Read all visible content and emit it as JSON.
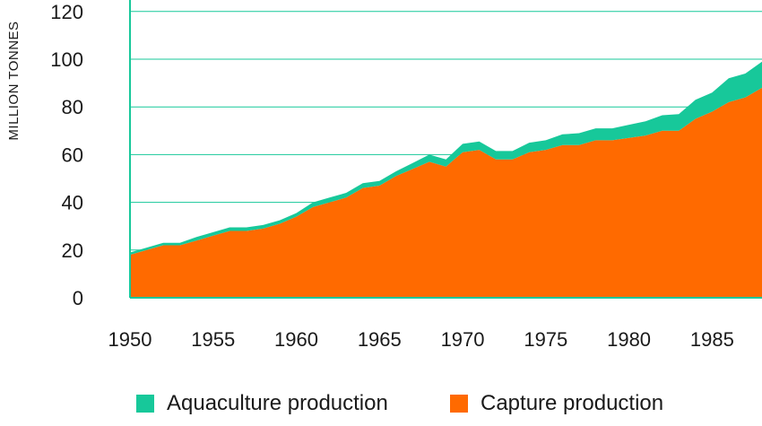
{
  "chart_data": {
    "type": "area",
    "stacked": true,
    "title": "",
    "xlabel": "",
    "ylabel": "MILLION TONNES",
    "ylim": [
      0,
      120
    ],
    "xlim": [
      1950,
      1988
    ],
    "yticks": [
      0,
      20,
      40,
      60,
      80,
      100,
      120
    ],
    "xticks": [
      1950,
      1955,
      1960,
      1965,
      1970,
      1975,
      1980,
      1985
    ],
    "grid": true,
    "legend_position": "bottom",
    "x": [
      1950,
      1951,
      1952,
      1953,
      1954,
      1955,
      1956,
      1957,
      1958,
      1959,
      1960,
      1961,
      1962,
      1963,
      1964,
      1965,
      1966,
      1967,
      1968,
      1969,
      1970,
      1971,
      1972,
      1973,
      1974,
      1975,
      1976,
      1977,
      1978,
      1979,
      1980,
      1981,
      1982,
      1983,
      1984,
      1985,
      1986,
      1987,
      1988
    ],
    "series": [
      {
        "name": "Capture production",
        "color": "#ff6a00",
        "values": [
          18,
          20,
          22,
          22,
          24,
          26,
          28,
          28,
          29,
          31,
          34,
          38,
          40,
          42,
          46,
          47,
          51,
          54,
          57,
          55,
          61,
          62,
          58,
          58,
          61,
          62,
          64,
          64,
          66,
          66,
          67,
          68,
          70,
          70,
          75,
          78,
          82,
          84,
          88
        ]
      },
      {
        "name": "Aquaculture production",
        "color": "#17c89a",
        "values": [
          1,
          1,
          1,
          1,
          1.5,
          1.5,
          1.5,
          1.5,
          1.5,
          1.5,
          1.5,
          2,
          2,
          2,
          2,
          2,
          2,
          2.5,
          3,
          3,
          3.5,
          3.5,
          3.5,
          3.5,
          4,
          4,
          4.5,
          5,
          5,
          5,
          5.5,
          6,
          6.5,
          7,
          8,
          8,
          10,
          10,
          11
        ]
      }
    ],
    "legend": [
      {
        "label": "Aquaculture production",
        "color": "#17c89a"
      },
      {
        "label": "Capture production",
        "color": "#ff6a00"
      }
    ],
    "axis_color": "#17c89a",
    "grid_color": "#17c89a"
  }
}
